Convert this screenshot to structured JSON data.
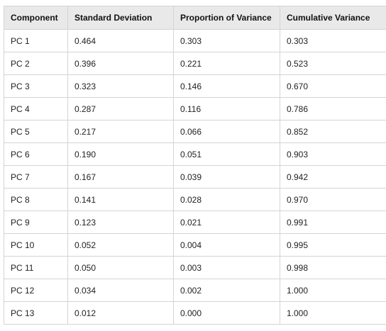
{
  "table": {
    "headers": [
      "Component",
      "Standard Deviation",
      "Proportion of Variance",
      "Cumulative Variance"
    ],
    "rows": [
      [
        "PC 1",
        "0.464",
        "0.303",
        "0.303"
      ],
      [
        "PC 2",
        "0.396",
        "0.221",
        "0.523"
      ],
      [
        "PC 3",
        "0.323",
        "0.146",
        "0.670"
      ],
      [
        "PC 4",
        "0.287",
        "0.116",
        "0.786"
      ],
      [
        "PC 5",
        "0.217",
        "0.066",
        "0.852"
      ],
      [
        "PC 6",
        "0.190",
        "0.051",
        "0.903"
      ],
      [
        "PC 7",
        "0.167",
        "0.039",
        "0.942"
      ],
      [
        "PC 8",
        "0.141",
        "0.028",
        "0.970"
      ],
      [
        "PC 9",
        "0.123",
        "0.021",
        "0.991"
      ],
      [
        "PC 10",
        "0.052",
        "0.004",
        "0.995"
      ],
      [
        "PC 11",
        "0.050",
        "0.003",
        "0.998"
      ],
      [
        "PC 12",
        "0.034",
        "0.002",
        "1.000"
      ],
      [
        "PC 13",
        "0.012",
        "0.000",
        "1.000"
      ]
    ]
  }
}
